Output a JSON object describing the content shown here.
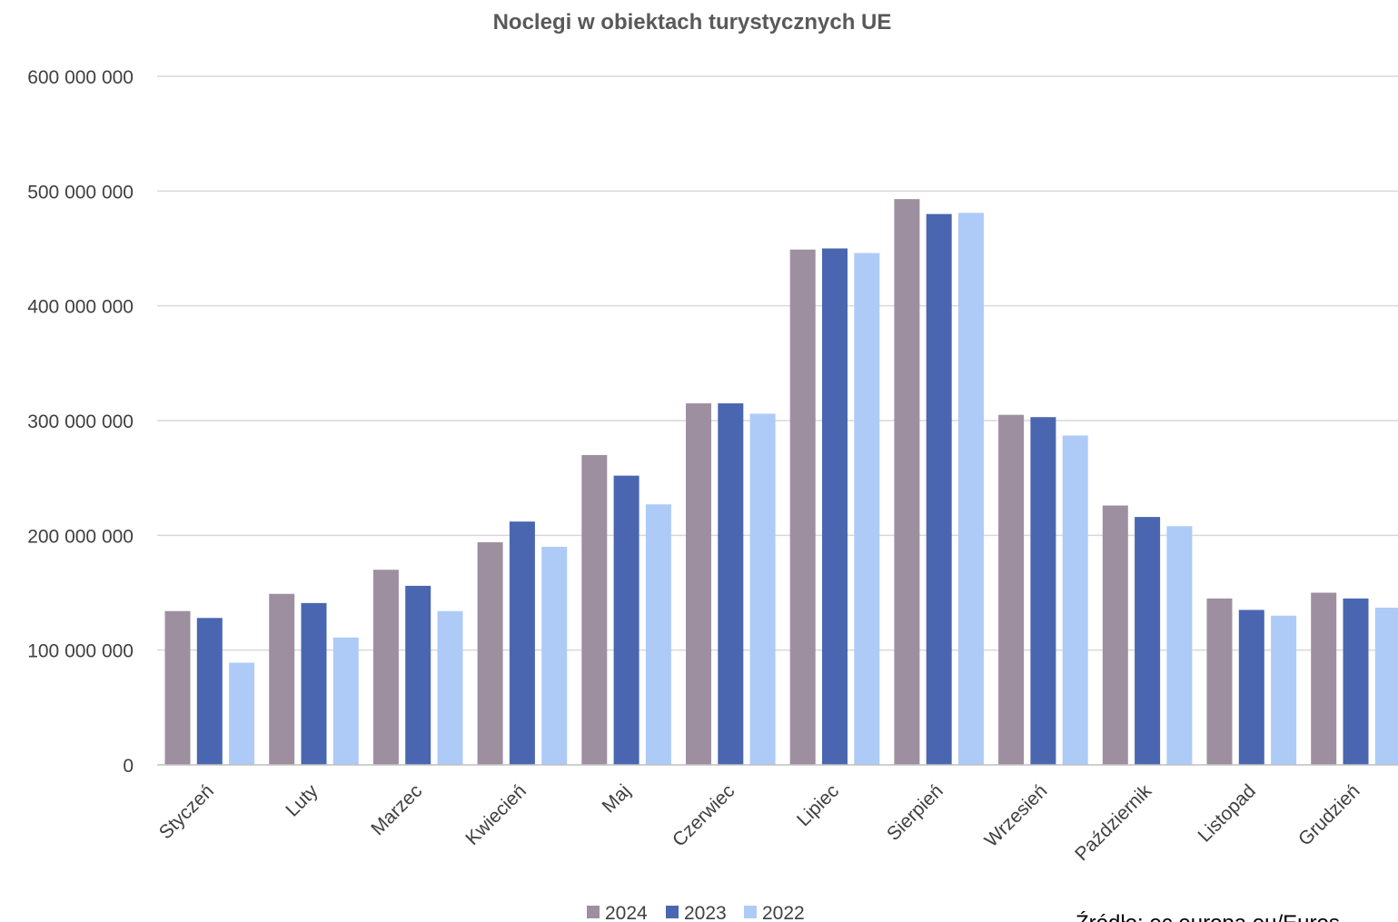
{
  "chart_data": {
    "type": "bar",
    "title": "Noclegi w obiektach turystycznych UE",
    "xlabel": "",
    "ylabel": "",
    "ylim": [
      0,
      600000000
    ],
    "yticks": [
      0,
      100000000,
      200000000,
      300000000,
      400000000,
      500000000,
      600000000
    ],
    "ytick_labels": [
      "0",
      "100 000 000",
      "200 000 000",
      "300 000 000",
      "400 000 000",
      "500 000 000",
      "600 000 000"
    ],
    "grid": true,
    "legend_position": "bottom",
    "categories": [
      "Styczeń",
      "Luty",
      "Marzec",
      "Kwiecień",
      "Maj",
      "Czerwiec",
      "Lipiec",
      "Sierpień",
      "Wrzesień",
      "Październik",
      "Listopad",
      "Grudzień"
    ],
    "series": [
      {
        "name": "2024",
        "color": "#9d8fa0",
        "values": [
          134000000,
          149000000,
          170000000,
          194000000,
          270000000,
          315000000,
          449000000,
          493000000,
          305000000,
          226000000,
          145000000,
          150000000
        ]
      },
      {
        "name": "2023",
        "color": "#4a66b0",
        "values": [
          128000000,
          141000000,
          156000000,
          212000000,
          252000000,
          315000000,
          450000000,
          480000000,
          303000000,
          216000000,
          135000000,
          145000000
        ]
      },
      {
        "name": "2022",
        "color": "#aecbf7",
        "values": [
          89000000,
          111000000,
          134000000,
          190000000,
          227000000,
          306000000,
          446000000,
          481000000,
          287000000,
          208000000,
          130000000,
          137000000
        ]
      }
    ],
    "source_note": "Źródło: ec.europa.eu/Euros"
  }
}
